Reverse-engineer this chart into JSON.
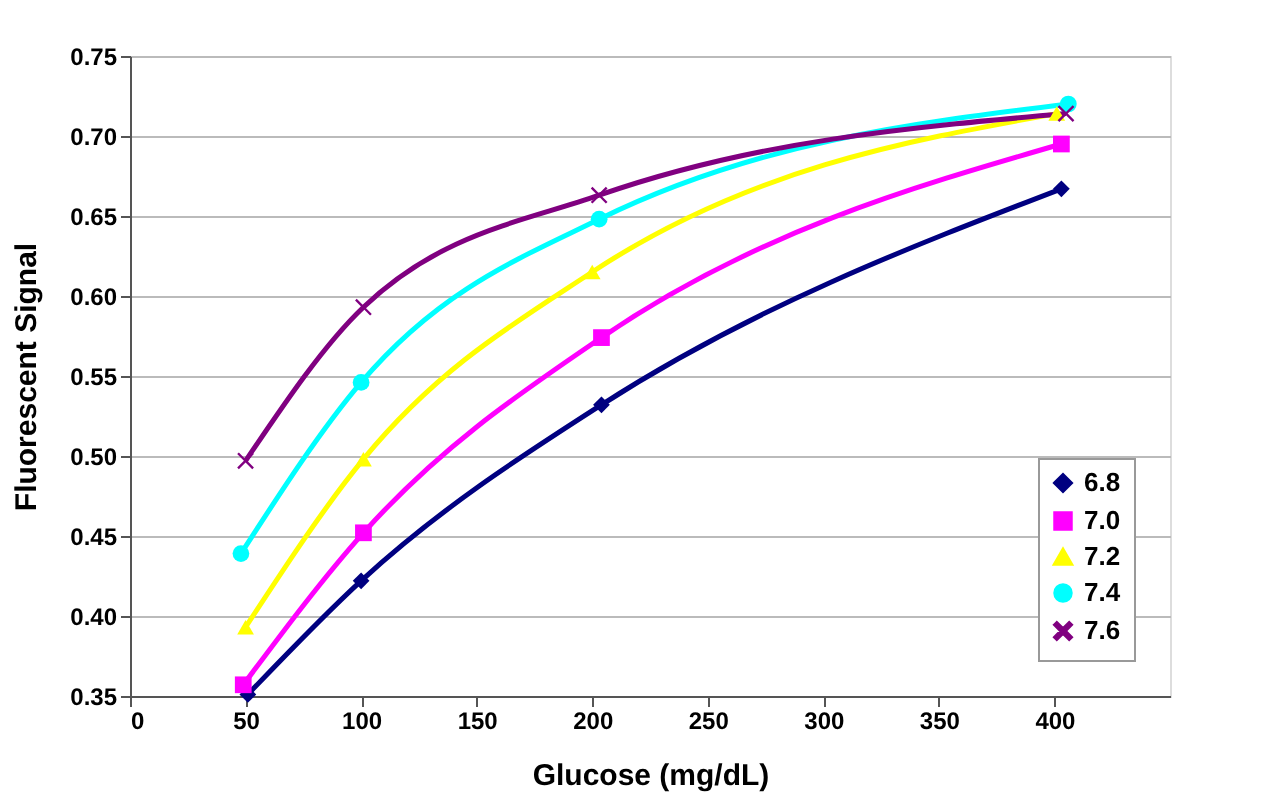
{
  "chart_data": {
    "type": "line",
    "xlabel": "Glucose (mg/dL)",
    "ylabel": "Fluorescent Signal",
    "xlim": [
      0,
      450
    ],
    "xticks": [
      0,
      50,
      100,
      150,
      200,
      250,
      300,
      350,
      400
    ],
    "ylim": [
      0.35,
      0.75
    ],
    "yticks": [
      {
        "value": 0.35,
        "label": "0.35"
      },
      {
        "value": 0.4,
        "label": "0.40"
      },
      {
        "value": 0.45,
        "label": "0.45"
      },
      {
        "value": 0.5,
        "label": "0.50"
      },
      {
        "value": 0.55,
        "label": "0.55"
      },
      {
        "value": 0.6,
        "label": "0.60"
      },
      {
        "value": 0.65,
        "label": "0.65"
      },
      {
        "value": 0.7,
        "label": "0.70"
      },
      {
        "value": 0.75,
        "label": "0.75"
      }
    ],
    "grid": "y",
    "legend": "bottom right",
    "line_style": "solid",
    "series": [
      {
        "name": "6.8",
        "color": "#000080",
        "marker": "diamond",
        "x": [
          51,
          100,
          204,
          403
        ],
        "values": [
          0.351,
          0.422,
          0.532,
          0.667
        ]
      },
      {
        "name": "7.0",
        "color": "#ff00ff",
        "marker": "square",
        "x": [
          49,
          101,
          204,
          403
        ],
        "values": [
          0.357,
          0.452,
          0.574,
          0.695
        ]
      },
      {
        "name": "7.2",
        "color": "#ffff00",
        "marker": "triangle",
        "x": [
          50,
          101,
          200,
          401
        ],
        "values": [
          0.393,
          0.498,
          0.615,
          0.714
        ]
      },
      {
        "name": "7.4",
        "color": "#00ffff",
        "marker": "circle",
        "x": [
          48,
          100,
          203,
          406
        ],
        "values": [
          0.439,
          0.546,
          0.648,
          0.72
        ]
      },
      {
        "name": "7.6",
        "color": "#800080",
        "marker": "cross",
        "x": [
          50,
          101,
          203,
          405
        ],
        "values": [
          0.497,
          0.593,
          0.663,
          0.714
        ]
      }
    ]
  }
}
